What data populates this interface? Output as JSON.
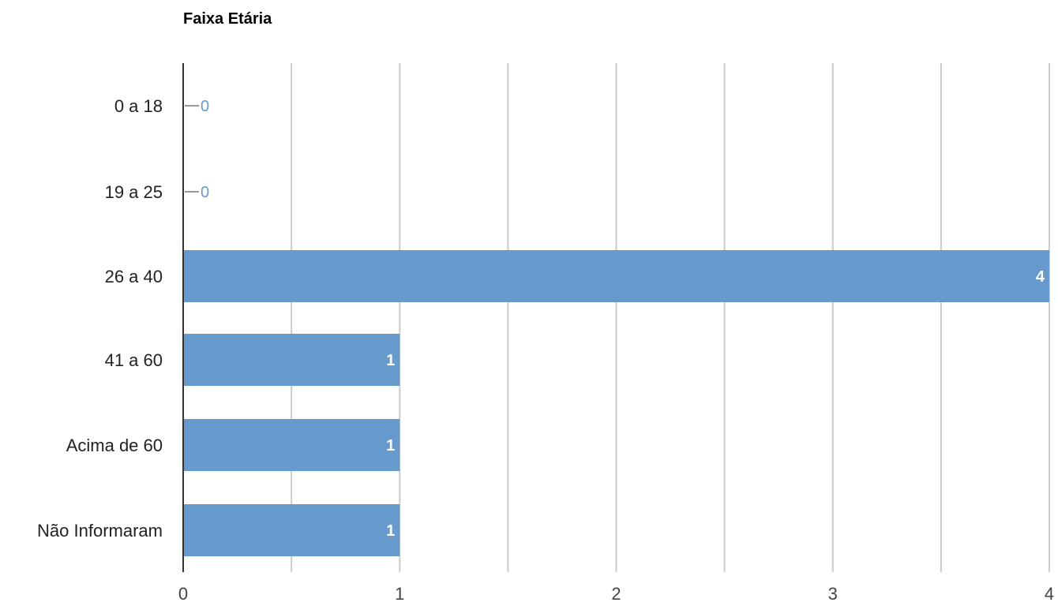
{
  "chart_data": {
    "type": "bar",
    "orientation": "horizontal",
    "title": "Faixa Etária",
    "xlabel": "",
    "ylabel": "",
    "categories": [
      "0 a 18",
      "19 a 25",
      "26 a 40",
      "41 a 60",
      "Acima de 60",
      "Não Informaram"
    ],
    "values": [
      0,
      0,
      4,
      1,
      1,
      1
    ],
    "xlim": [
      0,
      4
    ],
    "ticks": [
      0,
      1,
      2,
      3,
      4
    ],
    "tick_labels": [
      "0",
      "1",
      "2",
      "3",
      "4"
    ],
    "data_labels": [
      "0",
      "0",
      "4",
      "1",
      "1",
      "1"
    ],
    "grid": true,
    "legend": "none",
    "colors": {
      "bar": "#6699cc",
      "grid": "#cccccc",
      "axis": "#333333",
      "label_inside": "#ffffff",
      "label_outside": "#6699cc"
    }
  }
}
